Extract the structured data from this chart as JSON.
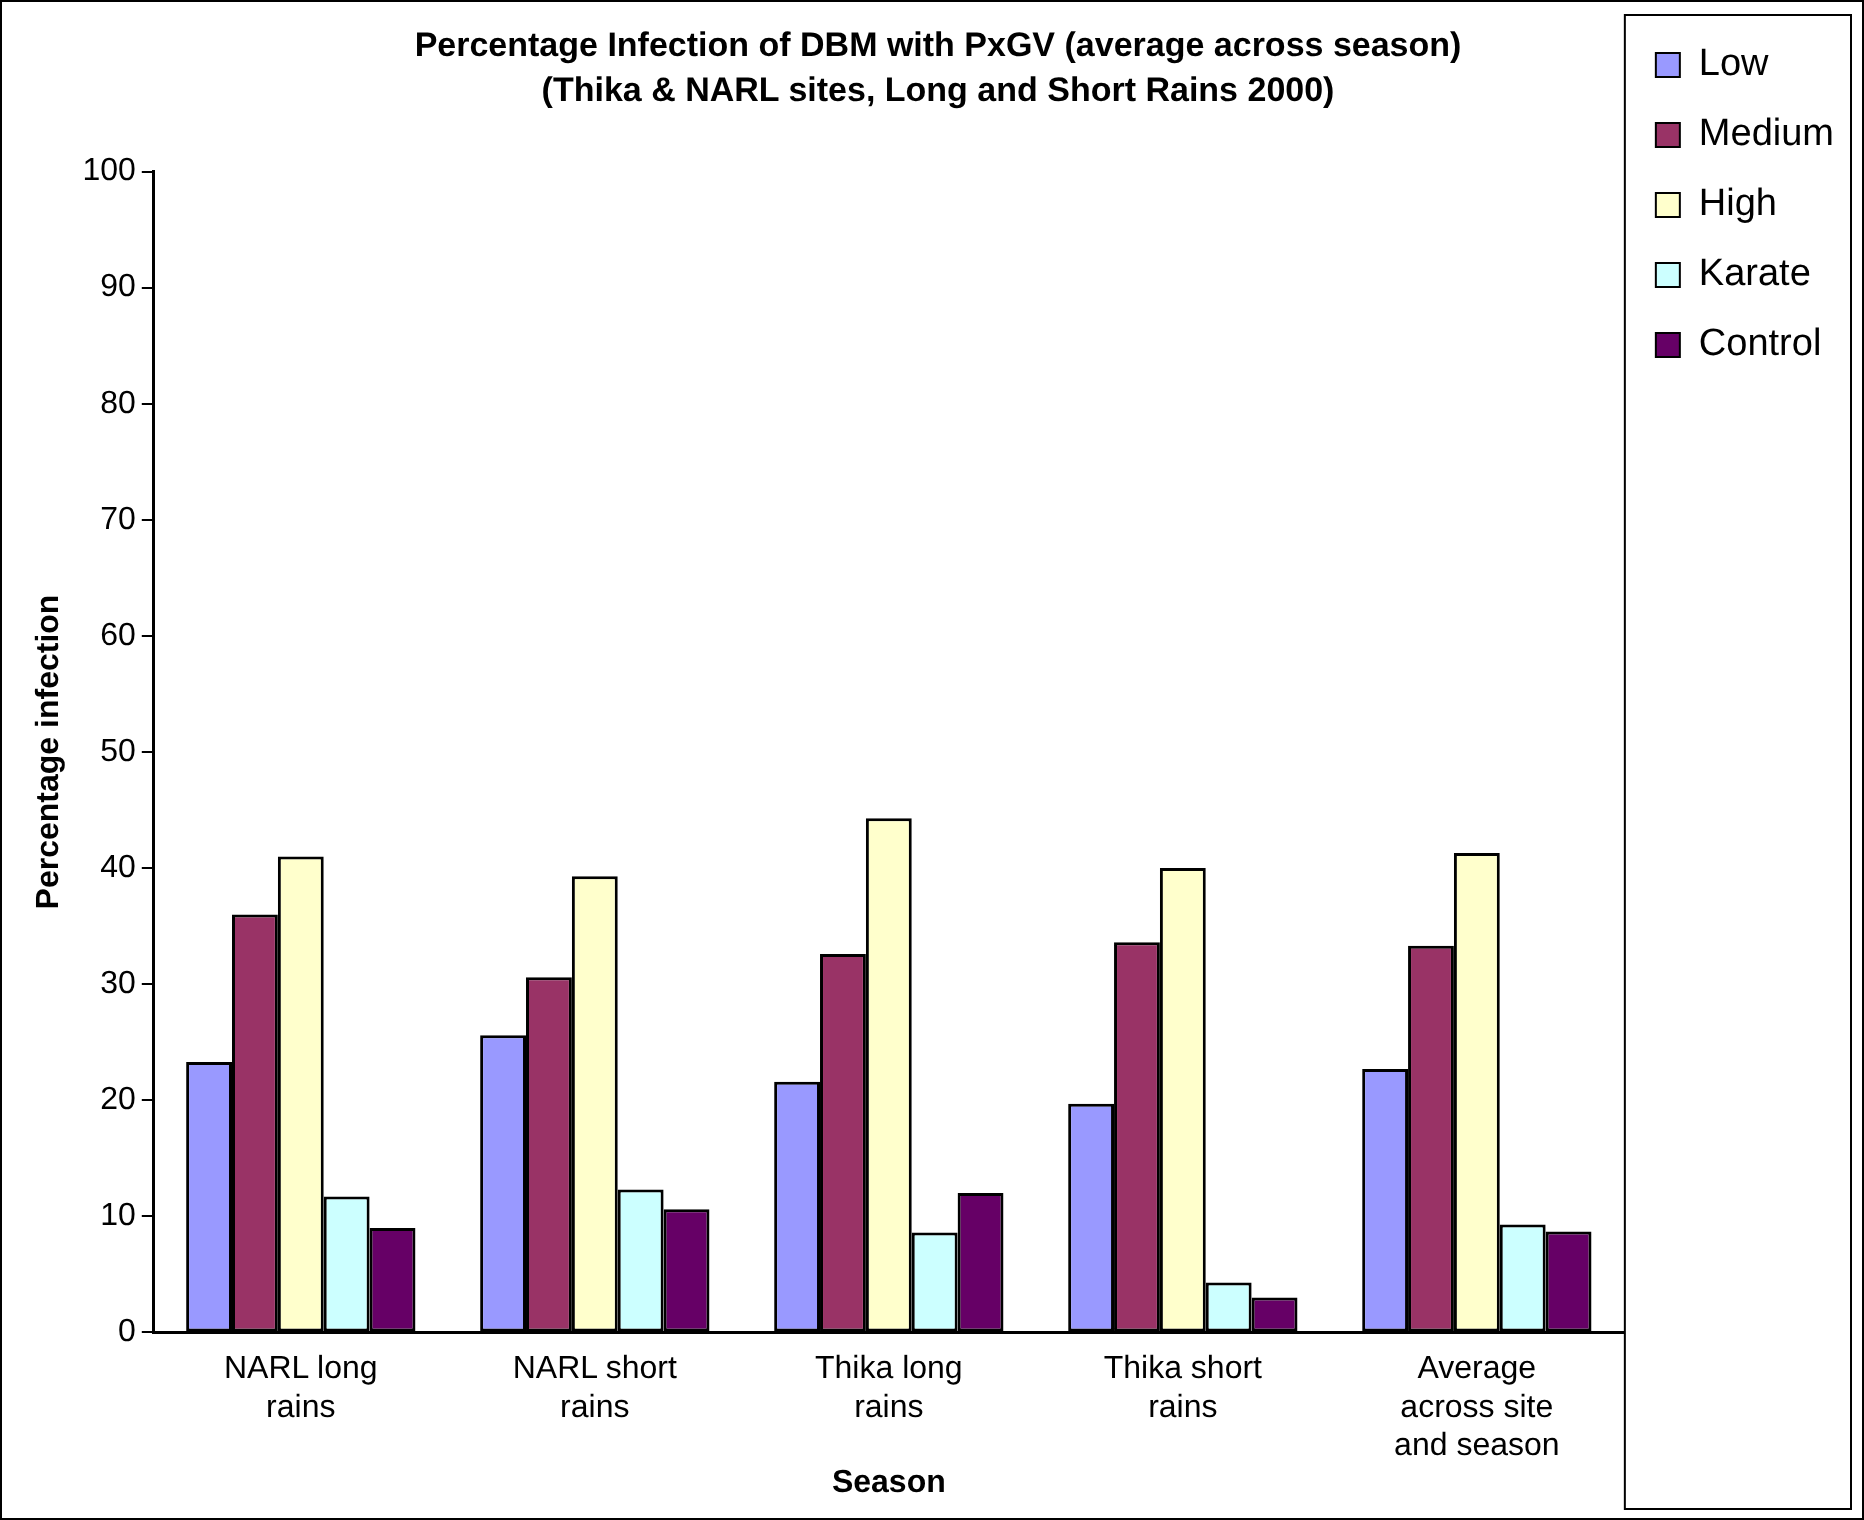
{
  "chart_data": {
    "type": "bar",
    "title": "Percentage Infection of DBM with PxGV (average across season)",
    "subtitle": "(Thika & NARL sites, Long and Short Rains 2000)",
    "xlabel": "Season",
    "ylabel": "Percentage infection",
    "categories": [
      "NARL long rains",
      "NARL short rains",
      "Thika long rains",
      "Thika short rains",
      "Average across site and season"
    ],
    "series": [
      {
        "name": "Low",
        "color": "#9999ff",
        "values": [
          23.3,
          25.6,
          21.6,
          19.7,
          22.7
        ]
      },
      {
        "name": "Medium",
        "color": "#993366",
        "values": [
          36,
          30.6,
          32.6,
          33.6,
          33.3
        ]
      },
      {
        "name": "High",
        "color": "#ffffcc",
        "values": [
          41,
          39.3,
          44.3,
          40,
          41.3
        ]
      },
      {
        "name": "Karate",
        "color": "#ccffff",
        "values": [
          11.7,
          12.3,
          8.6,
          4.3,
          9.3
        ]
      },
      {
        "name": "Control",
        "color": "#660066",
        "values": [
          9,
          10.6,
          12,
          3,
          8.7
        ]
      }
    ],
    "ylim": [
      0,
      100
    ],
    "yticks": [
      0,
      10,
      20,
      30,
      40,
      50,
      60,
      70,
      80,
      90,
      100
    ],
    "grid": false,
    "legend": "top right"
  }
}
